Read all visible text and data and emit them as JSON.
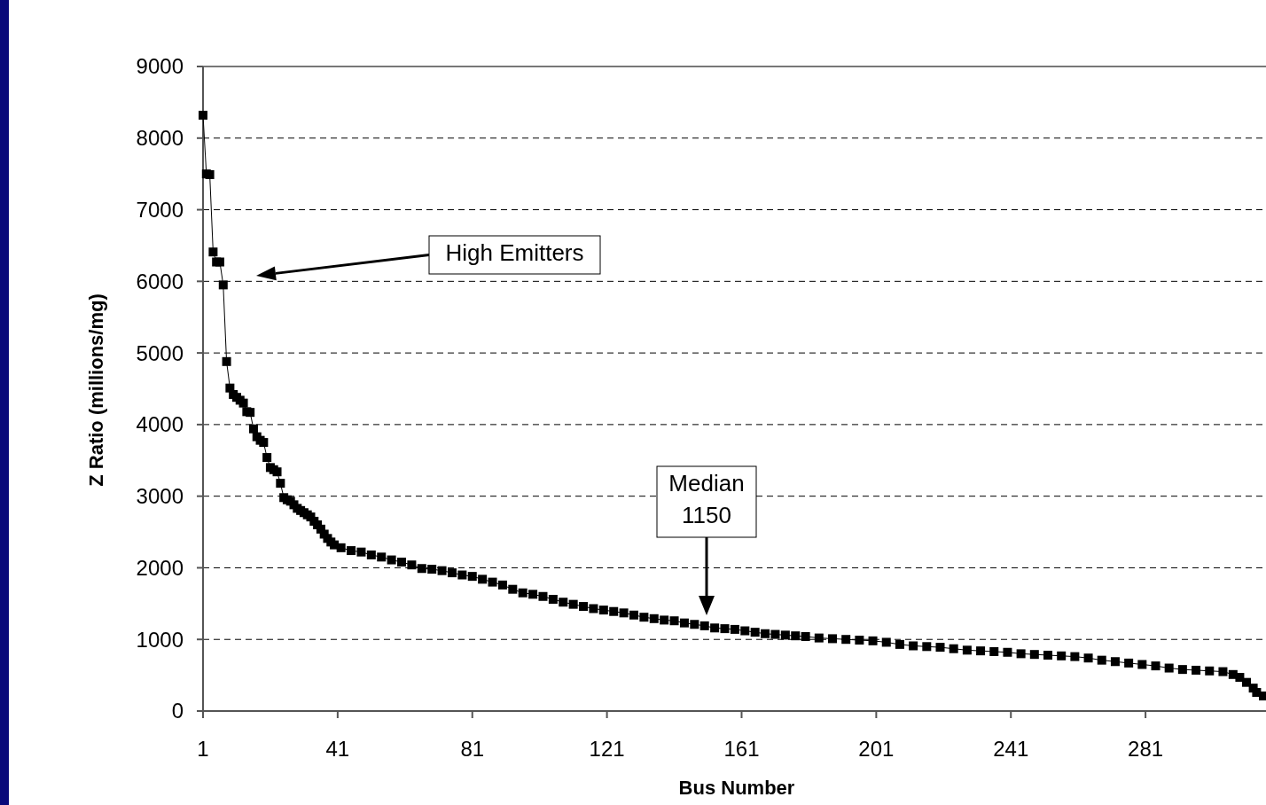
{
  "chart_data": {
    "type": "line",
    "xlabel": "Bus Number",
    "ylabel": "Z Ratio (millions/mg)",
    "xlim": [
      1,
      316
    ],
    "xticks": [
      1,
      41,
      81,
      121,
      161,
      201,
      241,
      281
    ],
    "ylim": [
      0,
      9000
    ],
    "yticks": [
      0,
      1000,
      2000,
      3000,
      4000,
      5000,
      6000,
      7000,
      8000,
      9000
    ],
    "grid": "y",
    "marker": "square",
    "line_style": "solid",
    "series": [
      {
        "color": "#000000",
        "x": [
          1,
          2,
          3,
          4,
          5,
          6,
          7,
          8,
          9,
          10,
          11,
          12,
          13,
          14,
          15,
          16,
          17,
          18,
          19,
          20,
          21,
          22,
          23,
          24,
          25,
          26,
          27,
          28,
          29,
          30,
          31,
          32,
          33,
          34,
          35,
          36,
          37,
          38,
          39,
          40,
          42,
          45,
          48,
          51,
          54,
          57,
          60,
          63,
          66,
          69,
          72,
          75,
          78,
          81,
          84,
          87,
          90,
          93,
          96,
          99,
          102,
          105,
          108,
          111,
          114,
          117,
          120,
          123,
          126,
          129,
          132,
          135,
          138,
          141,
          144,
          147,
          150,
          153,
          156,
          159,
          162,
          165,
          168,
          171,
          174,
          177,
          180,
          184,
          188,
          192,
          196,
          200,
          204,
          208,
          212,
          216,
          220,
          224,
          228,
          232,
          236,
          240,
          244,
          248,
          252,
          256,
          260,
          264,
          268,
          272,
          276,
          280,
          284,
          288,
          292,
          296,
          300,
          304,
          307,
          309,
          311,
          313,
          314,
          316
        ],
        "values": [
          8320,
          7500,
          7490,
          6410,
          6270,
          6270,
          5950,
          4880,
          4510,
          4420,
          4380,
          4340,
          4300,
          4180,
          4170,
          3940,
          3830,
          3780,
          3750,
          3540,
          3400,
          3370,
          3340,
          3180,
          2980,
          2950,
          2930,
          2880,
          2830,
          2800,
          2770,
          2740,
          2710,
          2650,
          2600,
          2540,
          2470,
          2410,
          2360,
          2320,
          2280,
          2240,
          2220,
          2180,
          2150,
          2110,
          2080,
          2040,
          1990,
          1980,
          1960,
          1930,
          1900,
          1880,
          1840,
          1800,
          1760,
          1700,
          1650,
          1630,
          1600,
          1560,
          1520,
          1490,
          1460,
          1430,
          1410,
          1390,
          1370,
          1340,
          1310,
          1290,
          1270,
          1260,
          1230,
          1210,
          1190,
          1160,
          1150,
          1140,
          1120,
          1100,
          1080,
          1070,
          1060,
          1050,
          1040,
          1020,
          1010,
          1000,
          990,
          980,
          960,
          930,
          910,
          900,
          890,
          870,
          850,
          840,
          830,
          820,
          800,
          790,
          780,
          770,
          760,
          740,
          710,
          690,
          670,
          650,
          630,
          600,
          580,
          570,
          560,
          550,
          510,
          470,
          400,
          320,
          260,
          210
        ]
      }
    ],
    "annotations": [
      "High Emitters",
      "Median\n1150"
    ]
  }
}
